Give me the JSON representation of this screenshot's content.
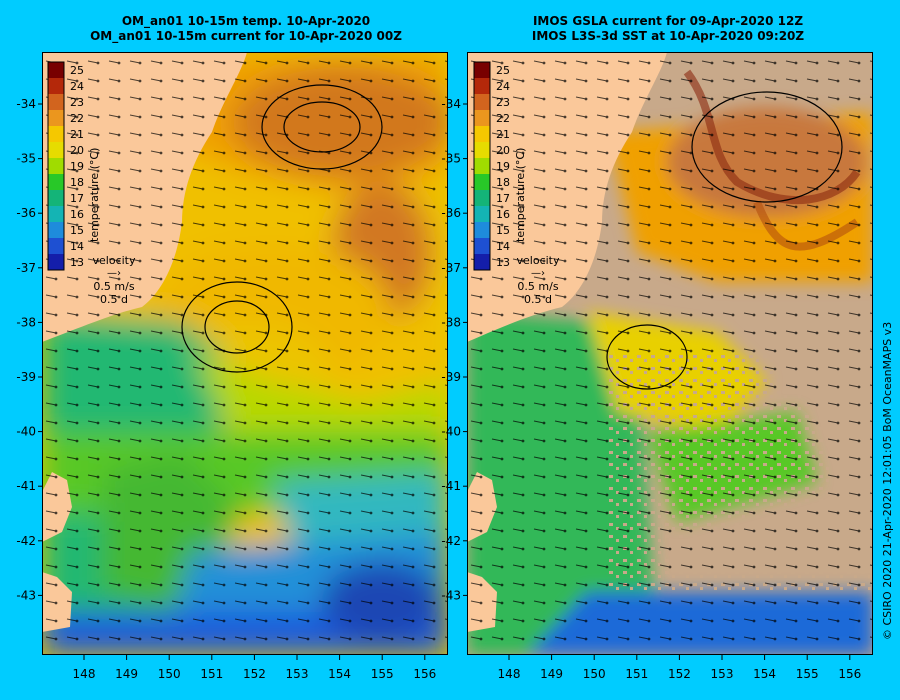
{
  "panels": [
    {
      "title_line1": "OM_an01 10-15m temp. 10-Apr-2020",
      "title_line2": "OM_an01 10-15m current for 10-Apr-2020 00Z",
      "land_mask": "model"
    },
    {
      "title_line1": "IMOS GSLA current for 09-Apr-2020 12Z",
      "title_line2": "IMOS L3S-3d SST at 10-Apr-2020 09:20Z",
      "land_mask": "satellite"
    }
  ],
  "colorbar": {
    "label": "temperature (°C)",
    "ticks": [
      "25",
      "24",
      "23",
      "22",
      "21",
      "20",
      "19",
      "18",
      "17",
      "16",
      "15",
      "14",
      "13"
    ]
  },
  "velocity_key": {
    "title": "velocity",
    "speed": "0.5 m/s",
    "duration": "0.5 d"
  },
  "lat_labels": [
    "-34",
    "-35",
    "-36",
    "-37",
    "-38",
    "-39",
    "-40",
    "-41",
    "-42",
    "-43"
  ],
  "lon_labels": [
    "148",
    "149",
    "150",
    "151",
    "152",
    "153",
    "154",
    "155",
    "156"
  ],
  "credit": "© CSIRO 2020   21-Apr-2020 12:01:05 BoM OceanMAPS v3",
  "colors": {
    "background": "#00ccff",
    "land": "#fac89a",
    "cloud": "#c8a98a",
    "warm": "#c86414",
    "cool": "#1e5adc"
  }
}
